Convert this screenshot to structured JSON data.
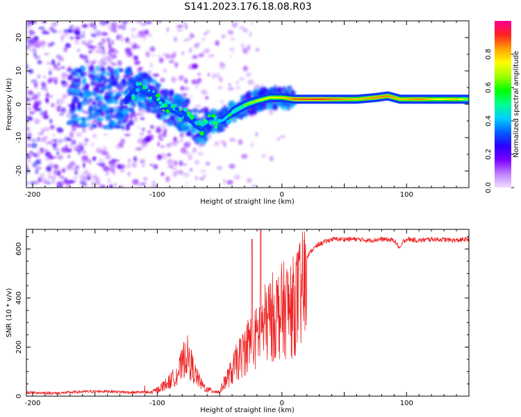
{
  "title": "S141.2023.176.18.08.R03",
  "chart_data": [
    {
      "type": "heatmap",
      "name": "spectrogram",
      "xlabel": "Height of straight line (km)",
      "ylabel": "Frequency (Hz)",
      "xlim": [
        -205,
        150
      ],
      "ylim": [
        -25,
        25
      ],
      "xticks": [
        -200,
        -100,
        0,
        100
      ],
      "yticks": [
        -20,
        -10,
        0,
        10,
        20
      ],
      "colorbar": {
        "label": "Normalized spectral amplitude",
        "range": [
          0,
          1
        ],
        "ticks": [
          0.0,
          0.2,
          0.4,
          0.6,
          0.8
        ],
        "colormap": [
          "#f0e0ff",
          "#c080ff",
          "#7a00ff",
          "#2b00ff",
          "#0060ff",
          "#00d0ff",
          "#00ff90",
          "#00ff00",
          "#a0ff00",
          "#ffff00",
          "#ffa000",
          "#ff2020",
          "#ff0090"
        ]
      },
      "ridge": {
        "description": "dominant frequency track (km, Hz, amplitude)",
        "points": [
          [
            -125,
            1,
            0.35
          ],
          [
            -115,
            5,
            0.45
          ],
          [
            -105,
            3,
            0.4
          ],
          [
            -95,
            0,
            0.45
          ],
          [
            -85,
            -2,
            0.45
          ],
          [
            -75,
            -4,
            0.4
          ],
          [
            -65,
            -7,
            0.45
          ],
          [
            -58,
            -5,
            0.5
          ],
          [
            -48,
            -5,
            0.55
          ],
          [
            -38,
            -2,
            0.6
          ],
          [
            -28,
            0,
            0.65
          ],
          [
            -20,
            1,
            0.7
          ],
          [
            -10,
            2,
            0.75
          ],
          [
            0,
            2,
            0.78
          ],
          [
            10,
            1.5,
            0.88
          ],
          [
            30,
            1.5,
            0.9
          ],
          [
            60,
            1.5,
            0.8
          ],
          [
            75,
            2,
            0.85
          ],
          [
            85,
            2.5,
            0.85
          ],
          [
            95,
            1.5,
            0.8
          ],
          [
            110,
            1.5,
            0.85
          ],
          [
            125,
            1.5,
            0.75
          ],
          [
            140,
            1.5,
            0.8
          ],
          [
            150,
            1.5,
            0.6
          ]
        ]
      }
    },
    {
      "type": "line",
      "name": "snr",
      "xlabel": "Height of straight line (km)",
      "ylabel": "SNR (10 * v/v)",
      "xlim": [
        -205,
        150
      ],
      "ylim": [
        0,
        680
      ],
      "xticks": [
        -200,
        -100,
        0,
        100
      ],
      "yticks": [
        0,
        200,
        400,
        600
      ],
      "color": "#ee2222",
      "series": [
        {
          "name": "SNR",
          "x": [
            -205,
            -180,
            -160,
            -140,
            -120,
            -105,
            -100,
            -95,
            -90,
            -85,
            -80,
            -77,
            -75,
            -72,
            -70,
            -65,
            -60,
            -55,
            -50,
            -45,
            -40,
            -38,
            -35,
            -32,
            -30,
            -28,
            -25,
            -23,
            -20,
            -18,
            -15,
            -13,
            -10,
            -8,
            -5,
            -3,
            0,
            3,
            5,
            8,
            10,
            12,
            15,
            18,
            20,
            25,
            30,
            35,
            40,
            50,
            60,
            70,
            80,
            90,
            95,
            97,
            100,
            110,
            120,
            130,
            140,
            150
          ],
          "y": [
            15,
            12,
            18,
            20,
            15,
            18,
            30,
            50,
            70,
            100,
            150,
            210,
            180,
            140,
            110,
            60,
            30,
            25,
            20,
            80,
            120,
            150,
            180,
            200,
            230,
            250,
            270,
            260,
            290,
            330,
            340,
            360,
            380,
            390,
            400,
            410,
            420,
            430,
            440,
            420,
            460,
            470,
            500,
            540,
            570,
            600,
            620,
            630,
            640,
            640,
            640,
            635,
            640,
            635,
            600,
            630,
            640,
            635,
            640,
            638,
            635,
            640
          ]
        }
      ],
      "spikes": [
        [
          -24,
          640
        ],
        [
          -17,
          680
        ]
      ]
    }
  ]
}
